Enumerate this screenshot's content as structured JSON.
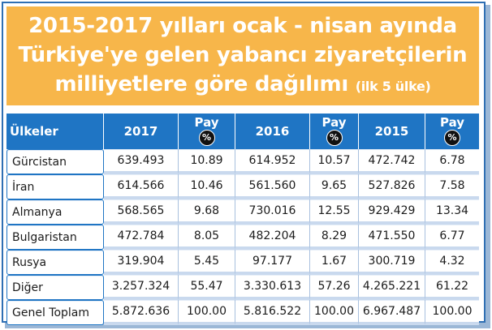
{
  "title": {
    "line1": "2015-2017 yılları ocak - nisan ayında",
    "line2": "Türkiye'ye gelen yabancı ziyaretçilerin",
    "line3": "milliyetlere göre dağılımı",
    "line3_sub": "(ilk 5 ülke)"
  },
  "headers": {
    "country": "Ülkeler",
    "y2017": "2017",
    "pay": "Pay",
    "pct": "%",
    "y2016": "2016",
    "y2015": "2015"
  },
  "rows": [
    {
      "country": "Gürcistan",
      "v2017": "639.493",
      "p2017": "10.89",
      "v2016": "614.952",
      "p2016": "10.57",
      "v2015": "472.742",
      "p2015": "6.78"
    },
    {
      "country": "İran",
      "v2017": "614.566",
      "p2017": "10.46",
      "v2016": "561.560",
      "p2016": "9.65",
      "v2015": "527.826",
      "p2015": "7.58"
    },
    {
      "country": "Almanya",
      "v2017": "568.565",
      "p2017": "9.68",
      "v2016": "730.016",
      "p2016": "12.55",
      "v2015": "929.429",
      "p2015": "13.34"
    },
    {
      "country": "Bulgaristan",
      "v2017": "472.784",
      "p2017": "8.05",
      "v2016": "482.204",
      "p2016": "8.29",
      "v2015": "471.550",
      "p2015": "6.77"
    },
    {
      "country": "Rusya",
      "v2017": "319.904",
      "p2017": "5.45",
      "v2016": "97.177",
      "p2016": "1.67",
      "v2015": "300.719",
      "p2015": "4.32"
    },
    {
      "country": "Diğer",
      "v2017": "3.257.324",
      "p2017": "55.47",
      "v2016": "3.330.613",
      "p2016": "57.26",
      "v2015": "4.265.221",
      "p2015": "61.22"
    },
    {
      "country": "Genel Toplam",
      "v2017": "5.872.636",
      "p2017": "100.00",
      "v2016": "5.816.522",
      "p2016": "100.00",
      "v2015": "6.967.487",
      "p2015": "100.00"
    }
  ],
  "colors": {
    "title_bg": "#f7b64a",
    "header_bg": "#1f75c4",
    "row_separator": "#c9d9ee"
  }
}
